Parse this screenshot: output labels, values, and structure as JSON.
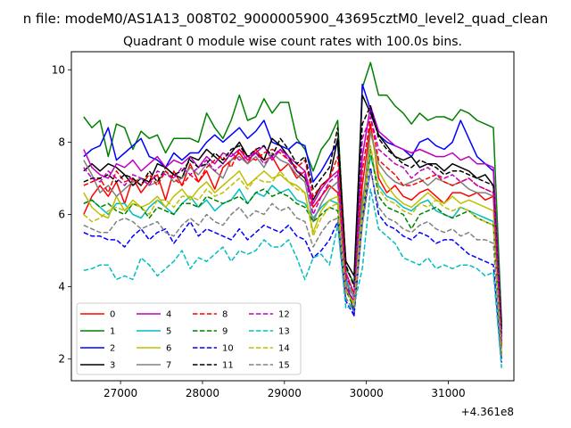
{
  "figure": {
    "suptitle": "n file: modeM0/AS1A13_008T02_9000005900_43695cztM0_level2_quad_clean"
  },
  "chart_data": {
    "type": "line",
    "title": "Quadrant 0 module wise count rates with 100.0s bins.",
    "xlabel": "",
    "ylabel": "",
    "x_offset_text": "+4.361e8",
    "x_offset": 436100000,
    "xlim": [
      26400,
      31800
    ],
    "ylim": [
      1.4,
      10.5
    ],
    "x_ticks": [
      {
        "value": 27000,
        "label": "27000"
      },
      {
        "value": 28000,
        "label": "28000"
      },
      {
        "value": 29000,
        "label": "29000"
      },
      {
        "value": 30000,
        "label": "30000"
      },
      {
        "value": 31000,
        "label": "31000"
      }
    ],
    "y_ticks": [
      {
        "value": 2,
        "label": "2"
      },
      {
        "value": 4,
        "label": "4"
      },
      {
        "value": 6,
        "label": "6"
      },
      {
        "value": 8,
        "label": "8"
      },
      {
        "value": 10,
        "label": "10"
      }
    ],
    "legend": "lower-left",
    "grid": false,
    "x": [
      26550,
      26650,
      26750,
      26850,
      26950,
      27050,
      27150,
      27250,
      27350,
      27450,
      27550,
      27650,
      27750,
      27850,
      27950,
      28050,
      28150,
      28250,
      28350,
      28450,
      28550,
      28650,
      28750,
      28850,
      28950,
      29050,
      29150,
      29250,
      29350,
      29450,
      29550,
      29650,
      29750,
      29850,
      29950,
      30050,
      30150,
      30250,
      30350,
      30450,
      30550,
      30650,
      30750,
      30850,
      30950,
      31050,
      31150,
      31250,
      31350,
      31450,
      31550,
      31650
    ],
    "series": [
      {
        "name": "0",
        "color": "#ff0000",
        "dash": "solid",
        "values": [
          6.0,
          6.5,
          6.8,
          6.5,
          6.9,
          6.3,
          7.0,
          6.6,
          6.9,
          7.1,
          6.4,
          7.2,
          6.8,
          7.4,
          6.9,
          7.2,
          6.7,
          7.3,
          7.5,
          7.7,
          7.4,
          7.8,
          7.5,
          7.6,
          7.2,
          7.4,
          7.0,
          7.2,
          6.2,
          6.5,
          6.8,
          6.6,
          4.0,
          3.5,
          6.8,
          8.5,
          7.0,
          6.6,
          6.8,
          6.5,
          6.4,
          6.6,
          6.7,
          6.5,
          6.3,
          6.6,
          6.6,
          6.5,
          6.6,
          6.4,
          6.5,
          2.3
        ]
      },
      {
        "name": "1",
        "color": "#008000",
        "dash": "solid",
        "values": [
          8.7,
          8.4,
          8.6,
          7.6,
          8.5,
          8.4,
          7.8,
          8.3,
          8.1,
          8.2,
          7.7,
          8.1,
          8.1,
          8.1,
          8.0,
          8.8,
          8.4,
          8.1,
          8.6,
          9.3,
          8.6,
          8.7,
          9.2,
          8.8,
          9.1,
          9.1,
          8.1,
          7.8,
          7.2,
          7.8,
          8.1,
          8.6,
          4.5,
          4.1,
          9.5,
          10.2,
          9.3,
          9.3,
          9.0,
          8.8,
          8.5,
          8.8,
          8.6,
          8.7,
          8.7,
          8.6,
          8.9,
          8.8,
          8.6,
          8.5,
          8.4,
          3.0
        ]
      },
      {
        "name": "2",
        "color": "#0000ff",
        "dash": "solid",
        "values": [
          7.6,
          7.8,
          7.9,
          8.4,
          7.5,
          7.7,
          7.9,
          8.1,
          7.6,
          7.5,
          7.3,
          7.7,
          7.5,
          7.7,
          7.7,
          8.0,
          8.2,
          8.0,
          8.2,
          8.4,
          8.1,
          8.3,
          8.6,
          8.0,
          7.9,
          7.8,
          8.0,
          7.9,
          6.9,
          7.2,
          7.6,
          8.0,
          4.3,
          3.2,
          9.6,
          8.9,
          8.2,
          8.0,
          7.9,
          7.8,
          7.6,
          8.0,
          8.1,
          7.9,
          7.8,
          8.0,
          8.6,
          8.1,
          7.6,
          7.4,
          7.2,
          2.8
        ]
      },
      {
        "name": "3",
        "color": "#000000",
        "dash": "solid",
        "values": [
          7.2,
          7.4,
          7.2,
          7.4,
          7.3,
          7.1,
          6.8,
          7.0,
          6.9,
          7.4,
          7.3,
          7.1,
          7.0,
          7.6,
          7.5,
          7.8,
          7.6,
          7.4,
          7.7,
          8.0,
          7.6,
          7.7,
          7.5,
          8.1,
          7.9,
          7.6,
          7.2,
          7.0,
          6.4,
          6.8,
          7.0,
          8.1,
          4.7,
          4.3,
          9.3,
          8.8,
          8.2,
          7.9,
          7.6,
          7.5,
          7.6,
          7.3,
          7.4,
          7.4,
          7.2,
          7.4,
          7.3,
          7.2,
          7.0,
          7.1,
          6.8,
          2.9
        ]
      },
      {
        "name": "4",
        "color": "#bf00bf",
        "dash": "solid",
        "values": [
          7.8,
          7.3,
          7.1,
          7.0,
          7.4,
          7.3,
          7.5,
          7.2,
          7.4,
          7.6,
          7.3,
          7.5,
          7.4,
          7.6,
          7.3,
          7.6,
          7.4,
          7.7,
          7.6,
          7.8,
          7.5,
          7.7,
          7.9,
          7.5,
          7.8,
          7.6,
          7.4,
          7.2,
          6.3,
          6.7,
          7.0,
          7.2,
          4.4,
          3.8,
          7.6,
          9.0,
          8.3,
          8.1,
          7.9,
          7.8,
          7.7,
          7.8,
          7.7,
          7.6,
          7.6,
          7.7,
          7.5,
          7.6,
          7.4,
          7.4,
          7.3,
          2.6
        ]
      },
      {
        "name": "5",
        "color": "#00bfbf",
        "dash": "solid",
        "values": [
          6.3,
          6.4,
          6.2,
          6.0,
          6.3,
          6.3,
          6.0,
          5.9,
          6.2,
          6.4,
          6.2,
          6.0,
          6.3,
          6.5,
          6.2,
          6.4,
          6.1,
          6.3,
          6.4,
          6.7,
          6.3,
          6.6,
          6.5,
          6.8,
          6.6,
          6.7,
          6.4,
          6.3,
          5.9,
          6.2,
          6.4,
          6.3,
          4.2,
          3.7,
          6.4,
          7.6,
          6.8,
          6.5,
          6.4,
          6.2,
          6.1,
          6.3,
          6.4,
          6.1,
          6.0,
          5.9,
          6.2,
          6.1,
          6.0,
          5.9,
          5.8,
          2.0
        ]
      },
      {
        "name": "6",
        "color": "#bfbf00",
        "dash": "solid",
        "values": [
          6.6,
          6.2,
          6.0,
          5.9,
          6.5,
          6.1,
          6.4,
          6.2,
          6.3,
          6.5,
          6.2,
          6.5,
          6.7,
          6.4,
          6.7,
          6.9,
          6.6,
          6.8,
          7.0,
          7.2,
          6.8,
          7.0,
          7.2,
          7.0,
          7.1,
          6.9,
          6.8,
          6.6,
          5.5,
          6.1,
          6.4,
          6.5,
          3.9,
          3.5,
          6.0,
          8.3,
          7.2,
          6.8,
          6.5,
          6.3,
          6.2,
          6.4,
          6.6,
          6.4,
          6.3,
          6.5,
          6.3,
          6.4,
          6.3,
          6.2,
          6.1,
          2.2
        ]
      },
      {
        "name": "7",
        "color": "#808080",
        "dash": "solid",
        "values": [
          7.5,
          7.1,
          6.6,
          6.8,
          6.5,
          6.7,
          6.9,
          7.0,
          6.8,
          6.9,
          7.2,
          6.9,
          7.0,
          7.3,
          7.1,
          7.4,
          7.2,
          7.0,
          7.5,
          7.6,
          7.4,
          7.6,
          7.3,
          7.7,
          7.5,
          7.4,
          7.1,
          6.9,
          5.8,
          6.3,
          6.7,
          6.9,
          4.1,
          3.7,
          6.2,
          8.3,
          7.4,
          7.1,
          6.9,
          6.8,
          6.9,
          7.0,
          6.8,
          7.0,
          6.9,
          6.8,
          6.9,
          6.7,
          6.6,
          6.6,
          6.5,
          2.5
        ]
      },
      {
        "name": "8",
        "color": "#ff0000",
        "dash": "dashed",
        "values": [
          6.8,
          6.9,
          7.0,
          6.6,
          7.2,
          6.9,
          7.0,
          6.8,
          7.1,
          6.8,
          7.2,
          7.0,
          6.8,
          7.1,
          6.9,
          7.3,
          7.5,
          7.6,
          7.3,
          7.8,
          7.6,
          7.5,
          7.7,
          7.8,
          7.7,
          7.5,
          7.3,
          7.5,
          6.5,
          6.8,
          7.0,
          7.6,
          4.3,
          3.8,
          7.2,
          8.7,
          7.5,
          7.3,
          7.1,
          6.8,
          6.8,
          6.9,
          7.0,
          7.1,
          6.9,
          6.8,
          6.9,
          7.0,
          6.8,
          6.7,
          6.6,
          2.4
        ]
      },
      {
        "name": "9",
        "color": "#008000",
        "dash": "dashed",
        "values": [
          6.3,
          6.4,
          6.2,
          6.3,
          6.1,
          6.0,
          6.3,
          6.2,
          5.9,
          6.2,
          6.1,
          6.0,
          6.3,
          6.3,
          6.2,
          6.5,
          6.4,
          6.3,
          6.4,
          6.5,
          6.3,
          6.6,
          6.7,
          6.5,
          6.6,
          6.5,
          6.3,
          6.2,
          5.8,
          6.0,
          6.2,
          6.1,
          3.9,
          3.4,
          5.9,
          7.8,
          6.5,
          6.2,
          6.1,
          6.0,
          5.6,
          6.0,
          6.1,
          6.2,
          6.0,
          5.9,
          6.0,
          6.1,
          5.9,
          5.8,
          5.7,
          2.1
        ]
      },
      {
        "name": "10",
        "color": "#0000ff",
        "dash": "dashed",
        "values": [
          5.5,
          5.4,
          5.4,
          5.3,
          5.3,
          5.1,
          5.4,
          5.6,
          5.3,
          5.5,
          5.6,
          5.2,
          5.5,
          5.8,
          5.4,
          5.6,
          5.5,
          5.4,
          5.3,
          5.6,
          5.3,
          5.5,
          5.7,
          5.6,
          5.5,
          5.7,
          5.4,
          5.3,
          4.8,
          5.0,
          5.3,
          5.8,
          3.6,
          3.2,
          5.8,
          7.3,
          6.0,
          5.7,
          5.6,
          5.4,
          5.3,
          5.5,
          5.4,
          5.2,
          5.3,
          5.3,
          5.1,
          4.9,
          4.8,
          4.7,
          4.6,
          1.9
        ]
      },
      {
        "name": "11",
        "color": "#000000",
        "dash": "dashed",
        "values": [
          6.9,
          7.0,
          7.0,
          7.1,
          6.9,
          7.1,
          7.0,
          6.8,
          7.2,
          6.9,
          7.3,
          7.1,
          7.2,
          7.5,
          7.3,
          7.4,
          7.7,
          7.5,
          7.8,
          7.9,
          7.6,
          7.8,
          7.9,
          7.6,
          8.1,
          7.8,
          7.4,
          7.6,
          6.7,
          7.0,
          7.3,
          8.4,
          4.6,
          4.0,
          8.5,
          9.0,
          8.1,
          7.8,
          7.6,
          7.4,
          7.3,
          7.5,
          7.4,
          7.3,
          7.1,
          7.2,
          7.2,
          7.1,
          7.0,
          6.9,
          6.8,
          2.7
        ]
      },
      {
        "name": "12",
        "color": "#bf00bf",
        "dash": "dashed",
        "values": [
          7.3,
          7.0,
          6.9,
          7.2,
          7.0,
          6.8,
          7.1,
          7.0,
          6.8,
          7.2,
          7.1,
          7.0,
          7.3,
          7.1,
          7.3,
          7.5,
          7.2,
          7.4,
          7.7,
          7.5,
          7.6,
          7.7,
          7.4,
          7.6,
          7.8,
          7.5,
          7.2,
          7.1,
          6.0,
          6.5,
          6.9,
          7.1,
          4.0,
          3.6,
          8.1,
          8.7,
          7.8,
          7.6,
          7.4,
          7.3,
          7.0,
          7.2,
          7.3,
          7.1,
          7.0,
          7.1,
          6.9,
          7.0,
          6.8,
          6.7,
          6.6,
          2.5
        ]
      },
      {
        "name": "13",
        "color": "#00bfbf",
        "dash": "dashed",
        "values": [
          4.45,
          4.5,
          4.6,
          4.6,
          4.2,
          4.3,
          4.2,
          4.8,
          4.6,
          4.3,
          4.5,
          4.7,
          5.0,
          4.5,
          4.8,
          4.7,
          4.9,
          5.1,
          4.7,
          5.0,
          4.9,
          5.0,
          5.3,
          5.1,
          5.1,
          5.3,
          4.8,
          4.2,
          4.8,
          4.9,
          4.6,
          5.7,
          3.4,
          3.5,
          4.5,
          6.7,
          5.6,
          5.4,
          5.2,
          4.8,
          4.7,
          4.6,
          4.8,
          4.5,
          4.6,
          4.5,
          4.6,
          4.6,
          4.5,
          4.3,
          4.4,
          1.75
        ]
      },
      {
        "name": "14",
        "color": "#bfbf00",
        "dash": "dashed",
        "values": [
          6.0,
          5.8,
          5.9,
          6.1,
          6.2,
          6.1,
          6.3,
          6.2,
          6.0,
          6.4,
          6.4,
          6.2,
          6.5,
          6.5,
          6.4,
          6.7,
          6.5,
          6.6,
          6.8,
          7.0,
          6.7,
          7.0,
          6.9,
          6.9,
          7.2,
          6.9,
          6.7,
          6.6,
          5.4,
          5.9,
          6.2,
          6.3,
          3.9,
          3.5,
          6.0,
          7.9,
          6.7,
          6.4,
          6.3,
          6.1,
          6.0,
          6.3,
          6.2,
          6.4,
          6.2,
          6.1,
          6.2,
          6.1,
          5.9,
          5.8,
          5.7,
          2.1
        ]
      },
      {
        "name": "15",
        "color": "#808080",
        "dash": "dashed",
        "values": [
          5.7,
          5.6,
          5.5,
          5.5,
          5.8,
          5.9,
          5.8,
          5.6,
          5.7,
          5.8,
          5.5,
          5.4,
          5.7,
          5.9,
          5.7,
          6.0,
          5.8,
          5.7,
          6.0,
          6.2,
          5.9,
          6.1,
          6.0,
          6.3,
          6.1,
          6.2,
          5.9,
          5.8,
          5.1,
          5.5,
          5.8,
          5.9,
          3.7,
          3.3,
          5.7,
          7.2,
          6.2,
          5.9,
          5.8,
          5.6,
          5.5,
          5.7,
          5.8,
          5.6,
          5.5,
          5.6,
          5.4,
          5.5,
          5.3,
          5.3,
          5.2,
          2.0
        ]
      }
    ]
  }
}
